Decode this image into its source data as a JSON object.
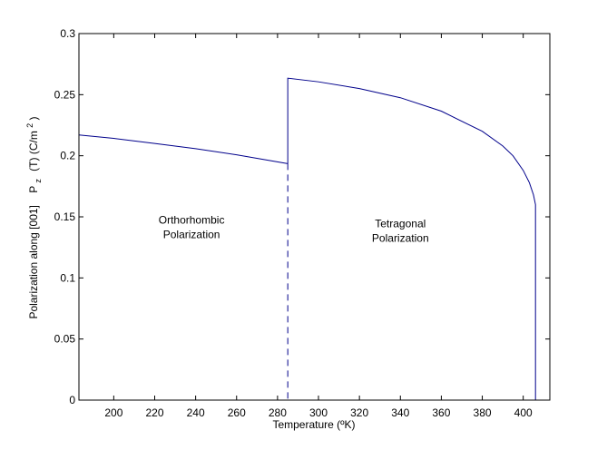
{
  "colors": {
    "background": "#ffffff",
    "axes": "#000000",
    "series": "#00008b"
  },
  "chart_data": {
    "type": "line",
    "title": "",
    "xlabel": "Temperature (ºK)",
    "ylabel_parts": {
      "prefix": "Polarization along [001]",
      "symbol": "P",
      "subscript": "z",
      "mid": "(T) (C/m",
      "superscript": "2",
      "suffix": ")"
    },
    "xlim": [
      183,
      413
    ],
    "ylim": [
      0,
      0.3
    ],
    "xticks": [
      200,
      220,
      240,
      260,
      280,
      300,
      320,
      340,
      360,
      380,
      400
    ],
    "xtick_labels": [
      "200",
      "220",
      "240",
      "260",
      "280",
      "300",
      "320",
      "340",
      "360",
      "380",
      "400"
    ],
    "yticks": [
      0,
      0.05,
      0.1,
      0.15,
      0.2,
      0.25,
      0.3
    ],
    "ytick_labels": [
      "0",
      "0.05",
      "0.1",
      "0.15",
      "0.2",
      "0.25",
      "0.3"
    ],
    "grid": false,
    "series": [
      {
        "style": "solid",
        "x": [
          183,
          200,
          220,
          240,
          260,
          285
        ],
        "y": [
          0.217,
          0.2142,
          0.2101,
          0.2058,
          0.2008,
          0.1935
        ]
      },
      {
        "style": "dashed",
        "x": [
          285,
          285
        ],
        "y": [
          0.1935,
          0
        ]
      },
      {
        "style": "solid",
        "x": [
          285,
          285,
          300,
          320,
          340,
          360,
          380,
          390,
          395,
          400,
          403,
          405,
          406,
          406,
          406
        ],
        "y": [
          0.1935,
          0.2635,
          0.2605,
          0.255,
          0.2475,
          0.2365,
          0.22,
          0.208,
          0.2,
          0.188,
          0.178,
          0.168,
          0.16,
          0.15,
          0
        ]
      }
    ],
    "annotations": [
      {
        "lines": [
          "Orthorhombic",
          "Polarization"
        ],
        "x": 238,
        "y": 0.1445
      },
      {
        "lines": [
          "Tetragonal",
          "Polarization"
        ],
        "x": 340,
        "y": 0.1415
      }
    ]
  }
}
